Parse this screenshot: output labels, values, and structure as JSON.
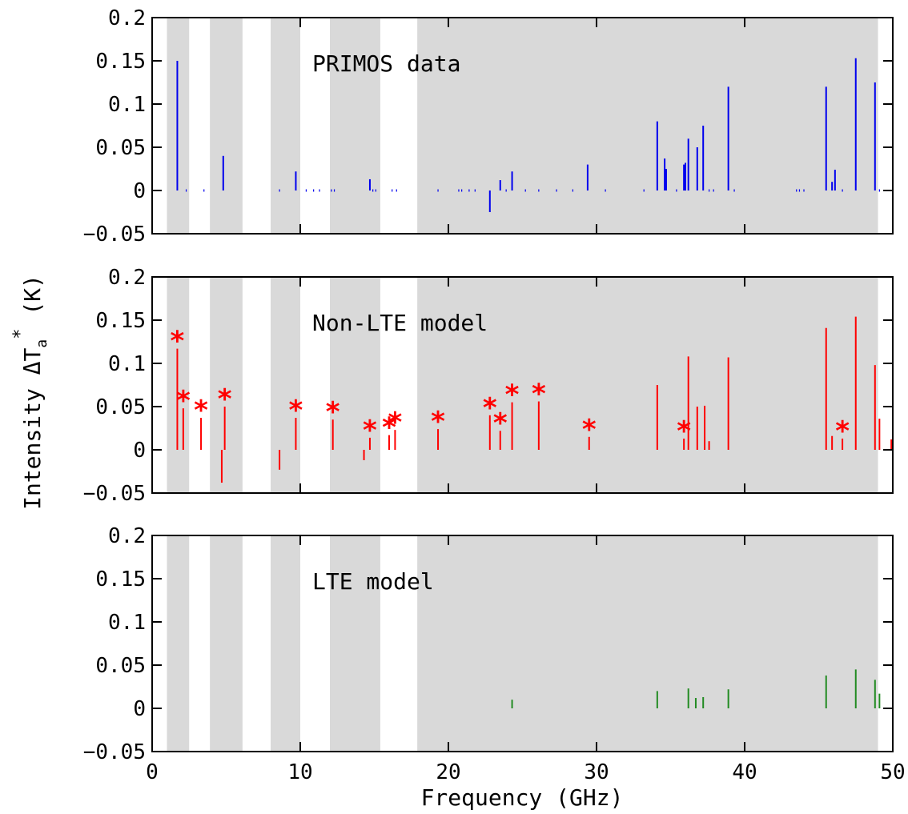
{
  "chart_data": {
    "type": "bar",
    "xlabel": "Frequency (GHz)",
    "ylabel": {
      "text": "Intensity ",
      "symbol": "ΔT",
      "subscript": "a",
      "superscript": "*",
      "unit": " (K)"
    },
    "xlim": [
      0,
      50
    ],
    "ylim": [
      -0.05,
      0.2
    ],
    "xticks": [
      "0",
      "10",
      "20",
      "30",
      "40",
      "50"
    ],
    "yticks": [
      "−0.05",
      "0",
      "0.05",
      "0.1",
      "0.15",
      "0.2"
    ],
    "shaded_bands_ghz": [
      [
        1.0,
        2.5
      ],
      [
        3.9,
        6.1
      ],
      [
        8.0,
        10.0
      ],
      [
        12.0,
        15.4
      ],
      [
        17.9,
        49.0
      ]
    ],
    "band_color": "#d9d9d9",
    "panels": [
      {
        "title": "PRIMOS data",
        "color": "#0000ee",
        "lines": [
          {
            "x": 1.7,
            "y": 0.15
          },
          {
            "x": 4.8,
            "y": 0.04
          },
          {
            "x": 9.7,
            "y": 0.022
          },
          {
            "x": 14.7,
            "y": 0.013
          },
          {
            "x": 22.8,
            "y": -0.025
          },
          {
            "x": 23.5,
            "y": 0.012
          },
          {
            "x": 24.3,
            "y": 0.022
          },
          {
            "x": 29.4,
            "y": 0.03
          },
          {
            "x": 34.1,
            "y": 0.08
          },
          {
            "x": 34.6,
            "y": 0.037
          },
          {
            "x": 34.7,
            "y": 0.025
          },
          {
            "x": 35.9,
            "y": 0.03
          },
          {
            "x": 36.0,
            "y": 0.032
          },
          {
            "x": 36.2,
            "y": 0.06
          },
          {
            "x": 36.8,
            "y": 0.05
          },
          {
            "x": 37.2,
            "y": 0.075
          },
          {
            "x": 38.9,
            "y": 0.12
          },
          {
            "x": 45.5,
            "y": 0.12
          },
          {
            "x": 45.9,
            "y": 0.01
          },
          {
            "x": 46.1,
            "y": 0.024
          },
          {
            "x": 47.5,
            "y": 0.153
          },
          {
            "x": 48.8,
            "y": 0.125
          }
        ],
        "noise_x": [
          2.3,
          3.5,
          8.6,
          10.4,
          10.9,
          11.3,
          12.1,
          12.3,
          14.9,
          15.1,
          16.2,
          16.5,
          19.3,
          20.7,
          20.9,
          21.4,
          21.8,
          23.9,
          25.2,
          26.1,
          27.3,
          28.4,
          30.6,
          33.2,
          35.4,
          37.6,
          37.9,
          39.3,
          43.5,
          43.7,
          44.0,
          46.6,
          49.1
        ]
      },
      {
        "title": "Non-LTE model",
        "color": "#ff0000",
        "lines": [
          {
            "x": 1.7,
            "y": 0.117,
            "star": true
          },
          {
            "x": 2.1,
            "y": 0.048,
            "star": true
          },
          {
            "x": 3.3,
            "y": 0.037,
            "star": true
          },
          {
            "x": 4.7,
            "y": -0.038,
            "star": false
          },
          {
            "x": 4.9,
            "y": 0.05,
            "star": true
          },
          {
            "x": 8.6,
            "y": -0.023,
            "star": false
          },
          {
            "x": 9.7,
            "y": 0.037,
            "star": true
          },
          {
            "x": 12.2,
            "y": 0.035,
            "star": true
          },
          {
            "x": 14.3,
            "y": -0.012,
            "star": false
          },
          {
            "x": 14.7,
            "y": 0.014,
            "star": true
          },
          {
            "x": 16.0,
            "y": 0.017,
            "star": true
          },
          {
            "x": 16.4,
            "y": 0.023,
            "star": true
          },
          {
            "x": 19.3,
            "y": 0.024,
            "star": true
          },
          {
            "x": 22.8,
            "y": 0.04,
            "star": true
          },
          {
            "x": 23.5,
            "y": 0.022,
            "star": true
          },
          {
            "x": 24.3,
            "y": 0.055,
            "star": true
          },
          {
            "x": 26.1,
            "y": 0.056,
            "star": true
          },
          {
            "x": 29.5,
            "y": 0.015,
            "star": true
          },
          {
            "x": 34.1,
            "y": 0.075,
            "star": false
          },
          {
            "x": 35.9,
            "y": 0.013,
            "star": true
          },
          {
            "x": 36.2,
            "y": 0.108,
            "star": false
          },
          {
            "x": 36.8,
            "y": 0.05,
            "star": false
          },
          {
            "x": 37.3,
            "y": 0.051,
            "star": false
          },
          {
            "x": 37.6,
            "y": 0.01,
            "star": false
          },
          {
            "x": 38.9,
            "y": 0.107,
            "star": false
          },
          {
            "x": 45.5,
            "y": 0.141,
            "star": false
          },
          {
            "x": 45.9,
            "y": 0.016,
            "star": false
          },
          {
            "x": 46.6,
            "y": 0.013,
            "star": true
          },
          {
            "x": 47.5,
            "y": 0.154,
            "star": false
          },
          {
            "x": 48.8,
            "y": 0.098,
            "star": false
          },
          {
            "x": 49.1,
            "y": 0.036,
            "star": false
          },
          {
            "x": 49.9,
            "y": 0.012,
            "star": false
          }
        ]
      },
      {
        "title": "LTE model",
        "color": "#228b22",
        "lines": [
          {
            "x": 24.3,
            "y": 0.01
          },
          {
            "x": 34.1,
            "y": 0.02
          },
          {
            "x": 36.2,
            "y": 0.023
          },
          {
            "x": 36.7,
            "y": 0.012
          },
          {
            "x": 37.2,
            "y": 0.013
          },
          {
            "x": 38.9,
            "y": 0.022
          },
          {
            "x": 45.5,
            "y": 0.038
          },
          {
            "x": 47.5,
            "y": 0.045
          },
          {
            "x": 48.8,
            "y": 0.033
          },
          {
            "x": 49.1,
            "y": 0.017
          }
        ]
      }
    ]
  }
}
